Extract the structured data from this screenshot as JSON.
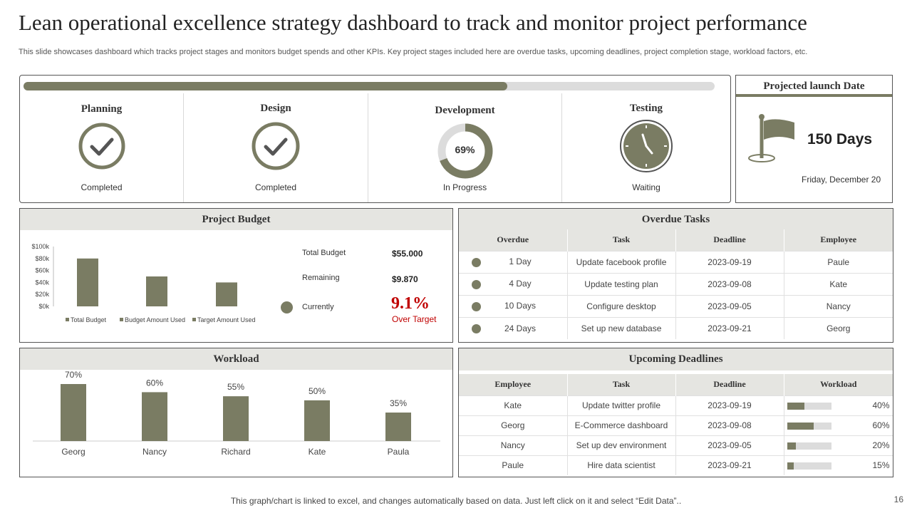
{
  "title": "Lean operational excellence strategy dashboard to track and monitor project performance",
  "subtitle": "This slide showcases dashboard which tracks project stages and monitors budget spends and other KPIs. Key project stages included here are overdue tasks, upcoming deadlines, project completion stage, workload factors, etc.",
  "colors": {
    "accent": "#7a7c63",
    "track": "#dcdcdc",
    "header_bg": "#e5e5e1",
    "alert": "#c00000"
  },
  "progress": {
    "fraction": 0.7
  },
  "stages": [
    {
      "name": "Planning",
      "status": "Completed",
      "icon": "check-circle-icon"
    },
    {
      "name": "Design",
      "status": "Completed",
      "icon": "check-circle-icon"
    },
    {
      "name": "Development",
      "status": "In Progress",
      "icon": "progress-ring-icon",
      "percent_label": "69%",
      "percent": 69
    },
    {
      "name": "Testing",
      "status": "Waiting",
      "icon": "clock-icon"
    }
  ],
  "launch": {
    "title": "Projected launch Date",
    "days": "150 Days",
    "date": "Friday, December 20",
    "icon": "flag-icon"
  },
  "budget": {
    "title": "Project Budget",
    "total_label": "Total Budget",
    "total_value": "$55.000",
    "remaining_label": "Remaining",
    "remaining_value": "$9.870",
    "currently_label": "Currently",
    "pct": "9.1%",
    "over_label": "Over Target"
  },
  "workload": {
    "title": "Workload"
  },
  "chart_data": [
    {
      "type": "bar",
      "categories": [
        "Total Budget",
        "Budget Amount Used",
        "Target Amount Used"
      ],
      "values": [
        80000,
        50000,
        40000
      ],
      "y_ticks": [
        "$100k",
        "$80k",
        "$60k",
        "$40k",
        "$20k",
        "$0k"
      ],
      "ylim": [
        0,
        100000
      ],
      "legend": [
        "Total Budget",
        "Budget Amount Used",
        "Target Amount Used"
      ],
      "legend_position": "bottom"
    },
    {
      "type": "bar",
      "categories": [
        "Georg",
        "Nancy",
        "Richard",
        "Kate",
        "Paula"
      ],
      "values": [
        70,
        60,
        55,
        50,
        35
      ],
      "data_labels": [
        "70%",
        "60%",
        "55%",
        "50%",
        "35%"
      ],
      "ylim": [
        0,
        80
      ]
    }
  ],
  "overdue": {
    "title": "Overdue Tasks",
    "headers": [
      "Overdue",
      "Task",
      "Deadline",
      "Employee"
    ],
    "rows": [
      {
        "overdue": "1 Day",
        "task": "Update facebook profile",
        "deadline": "2023-09-19",
        "employee": "Paule"
      },
      {
        "overdue": "4 Day",
        "task": "Update testing plan",
        "deadline": "2023-09-08",
        "employee": "Kate"
      },
      {
        "overdue": "10 Days",
        "task": "Configure desktop",
        "deadline": "2023-09-05",
        "employee": "Nancy"
      },
      {
        "overdue": "24 Days",
        "task": "Set up new database",
        "deadline": "2023-09-21",
        "employee": "Georg"
      }
    ]
  },
  "upcoming": {
    "title": "Upcoming  Deadlines",
    "headers": [
      "Employee",
      "Task",
      "Deadline",
      "Workload"
    ],
    "rows": [
      {
        "employee": "Kate",
        "task": "Update twitter profile",
        "deadline": "2023-09-19",
        "workload": "40%",
        "fraction": 0.4
      },
      {
        "employee": "Georg",
        "task": "E-Commerce dashboard",
        "deadline": "2023-09-08",
        "workload": "60%",
        "fraction": 0.6
      },
      {
        "employee": "Nancy",
        "task": "Set up dev environment",
        "deadline": "2023-09-05",
        "workload": "20%",
        "fraction": 0.2
      },
      {
        "employee": "Paule",
        "task": "Hire data scientist",
        "deadline": "2023-09-21",
        "workload": "15%",
        "fraction": 0.15
      }
    ]
  },
  "footer": "This graph/chart is linked to excel,  and changes automatically based on data. Just left click on it and select “Edit Data”..",
  "page_number": "16"
}
